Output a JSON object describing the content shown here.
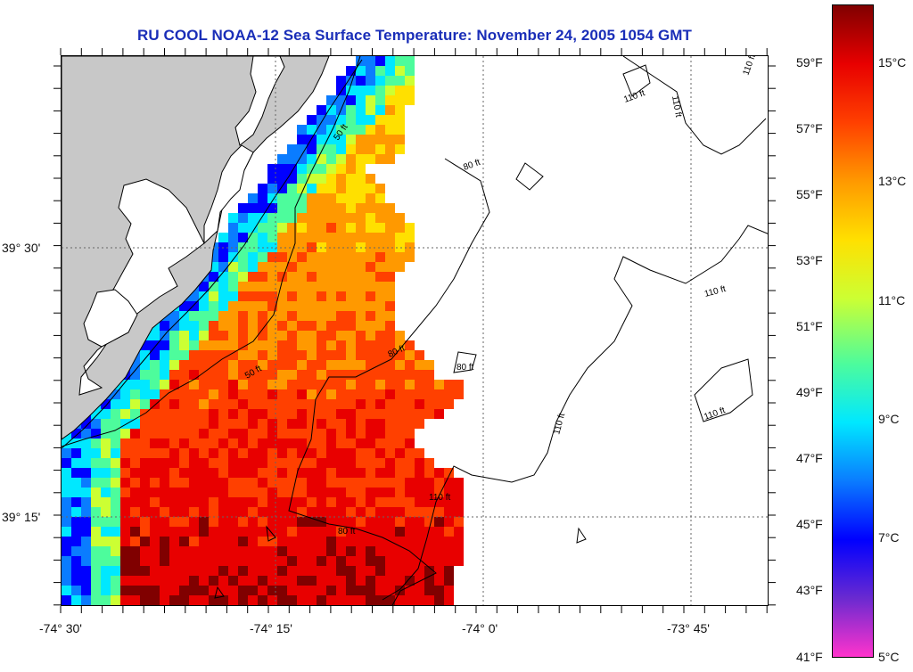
{
  "title": "RU COOL  NOAA-12  Sea Surface Temperature:  November 24, 2005 1054 GMT",
  "axes": {
    "lat_labels": [
      "39° 30'",
      "39° 15'"
    ],
    "lon_labels": [
      "-74° 30'",
      "-74° 15'",
      "-74° 0'",
      "-73° 45'"
    ]
  },
  "contour_labels": [
    "50 ft",
    "50 ft",
    "80 ft",
    "80 ft",
    "80 ft",
    "80 ft",
    "110 ft",
    "110 ft",
    "110 ft",
    "110 ft",
    "110 ft",
    "110 ft"
  ],
  "colorbar": {
    "fahrenheit_labels": [
      "59°F",
      "57°F",
      "55°F",
      "53°F",
      "51°F",
      "49°F",
      "47°F",
      "45°F",
      "43°F",
      "41°F"
    ],
    "celsius_labels": [
      "15°C",
      "13°C",
      "11°C",
      "9°C",
      "7°C",
      "5°C"
    ],
    "colors": [
      "#ff33cc",
      "#6a2ad0",
      "#0000ff",
      "#0a7cff",
      "#00e8ff",
      "#4dfc9c",
      "#ccff33",
      "#ffe000",
      "#ff9900",
      "#ff4000",
      "#e80000",
      "#800000"
    ]
  },
  "colors": {
    "title": "#1a2eb8",
    "land": "#c8c8c8",
    "grid": "#666666"
  }
}
